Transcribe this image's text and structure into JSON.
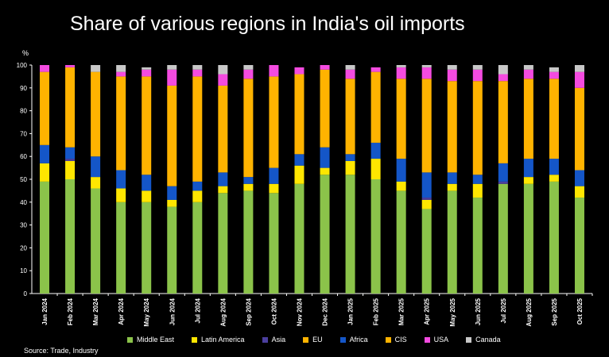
{
  "chart_data": {
    "type": "bar",
    "stacked": true,
    "title": "Share of various regions in India's oil imports",
    "ylabel": "%",
    "ylim": [
      0,
      100
    ],
    "yticks": [
      0,
      10,
      20,
      30,
      40,
      50,
      60,
      70,
      80,
      90,
      100
    ],
    "legend_position": "bottom",
    "grid": false,
    "categories": [
      "Jan 2024",
      "Feb 2024",
      "Mar 2024",
      "Apr 2024",
      "May 2024",
      "Jun 2024",
      "Jul 2024",
      "Aug 2024",
      "Sep 2024",
      "Oct 2024",
      "Nov 2024",
      "Dec 2024",
      "Jan 2025",
      "Feb 2025",
      "Mar 2025",
      "Apr 2025",
      "May 2025",
      "Jun 2025",
      "Jul 2025",
      "Aug 2025",
      "Sep 2025",
      "Oct 2025"
    ],
    "series": [
      {
        "name": "Middle East",
        "color": "#8BC34A",
        "values": [
          49,
          50,
          46,
          40,
          40,
          38,
          40,
          44,
          45,
          44,
          48,
          52,
          52,
          50,
          45,
          37,
          45,
          42,
          48,
          48,
          49,
          42
        ]
      },
      {
        "name": "Latin America",
        "color": "#FFE600",
        "values": [
          8,
          8,
          5,
          6,
          5,
          3,
          5,
          3,
          3,
          4,
          8,
          3,
          6,
          9,
          4,
          4,
          3,
          6,
          0,
          3,
          3,
          5
        ]
      },
      {
        "name": "Asia",
        "color": "#4B3F9E",
        "values": [
          0,
          1,
          0,
          0,
          0,
          0,
          0,
          0,
          0,
          0,
          0,
          0,
          0,
          0,
          0,
          1,
          0,
          0,
          1,
          0,
          0,
          0
        ]
      },
      {
        "name": "EU",
        "color": "#FFB300",
        "values": [
          0,
          0,
          0,
          0,
          0,
          0,
          0,
          0,
          0,
          0,
          0,
          0,
          0,
          0,
          0,
          0,
          0,
          0,
          0,
          0,
          0,
          0
        ]
      },
      {
        "name": "Africa",
        "color": "#1456C8",
        "values": [
          8,
          5,
          9,
          8,
          7,
          6,
          4,
          6,
          3,
          7,
          5,
          9,
          3,
          7,
          10,
          11,
          5,
          4,
          8,
          8,
          7,
          7
        ]
      },
      {
        "name": "CIS",
        "color": "#FFB300",
        "values": [
          32,
          35,
          37,
          41,
          43,
          44,
          46,
          38,
          43,
          40,
          35,
          34,
          33,
          31,
          35,
          41,
          40,
          41,
          36,
          35,
          35,
          36
        ]
      },
      {
        "name": "USA",
        "color": "#F44BE0",
        "values": [
          3,
          1,
          0,
          2,
          3,
          7,
          3,
          5,
          4,
          5,
          3,
          2,
          4,
          2,
          5,
          5,
          5,
          5,
          3,
          4,
          3,
          7
        ]
      },
      {
        "name": "Canada",
        "color": "#C8C8C8",
        "values": [
          0,
          0,
          3,
          3,
          1,
          2,
          2,
          4,
          2,
          0,
          0,
          0,
          2,
          0,
          1,
          1,
          2,
          2,
          4,
          2,
          2,
          3
        ]
      }
    ]
  },
  "source_text": "Source: Trade, Industry"
}
